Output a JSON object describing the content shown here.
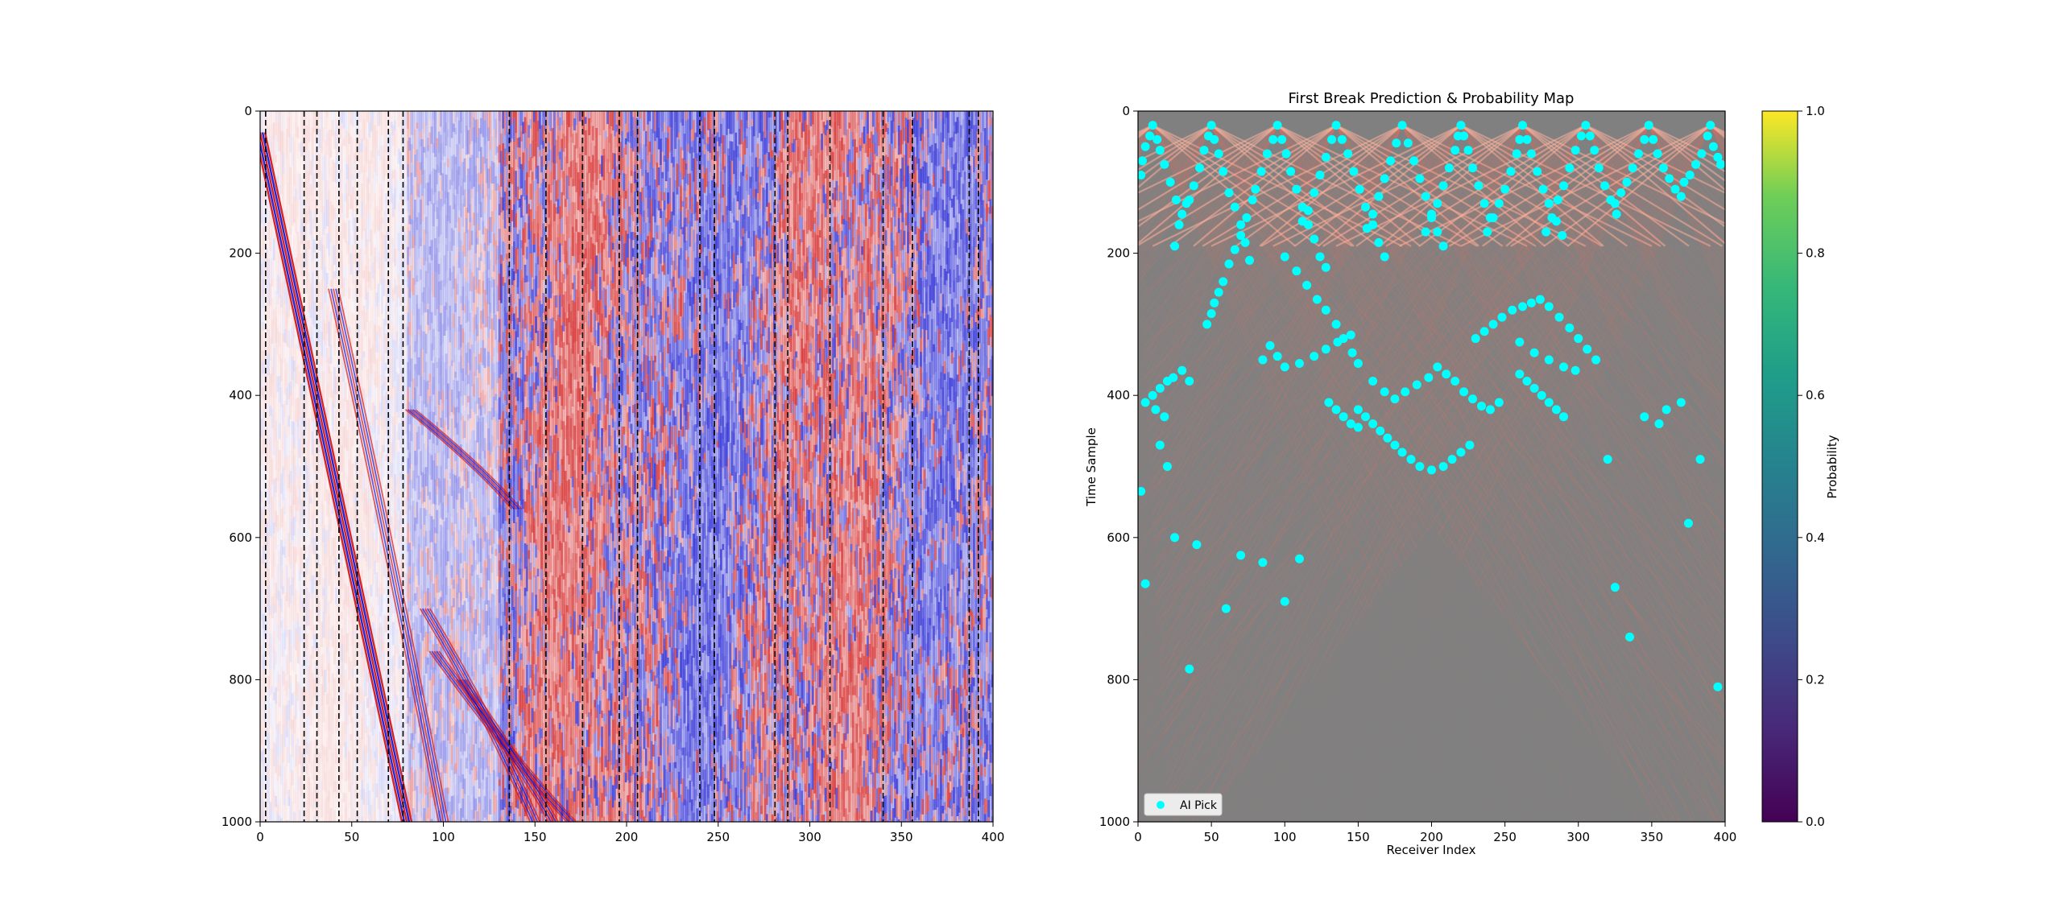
{
  "chart_data": [
    {
      "type": "heatmap",
      "title": "",
      "xlabel": "",
      "ylabel": "",
      "xlim": [
        0,
        400
      ],
      "ylim": [
        1000,
        0
      ],
      "xticks": [
        0,
        50,
        100,
        150,
        200,
        250,
        300,
        350,
        400
      ],
      "yticks": [
        0,
        200,
        400,
        600,
        800,
        1000
      ],
      "colormap": "seismic (blue-white-red)",
      "colors": {
        "positive": "#d01010",
        "negative": "#1010d0",
        "zero": "#ffffff"
      },
      "first_arrival_line": [
        [
          0,
          30
        ],
        [
          80,
          1000
        ]
      ],
      "dashed_trace_positions": [
        3,
        24,
        31,
        43,
        53,
        70,
        78,
        136,
        156,
        176,
        196,
        206,
        240,
        248,
        281,
        288,
        311,
        340,
        356,
        387,
        392
      ]
    },
    {
      "type": "heatmap",
      "title": "First Break Prediction & Probability Map",
      "xlabel": "Receiver Index",
      "ylabel": "Time Sample",
      "xlim": [
        0,
        400
      ],
      "ylim": [
        1000,
        0
      ],
      "xticks": [
        0,
        50,
        100,
        150,
        200,
        250,
        300,
        350,
        400
      ],
      "yticks": [
        0,
        200,
        400,
        600,
        800,
        1000
      ],
      "background_color": "#808080",
      "overlay_color": "#ff6e5a",
      "source_apexes": [
        {
          "x": 10,
          "t": 20
        },
        {
          "x": 50,
          "t": 20
        },
        {
          "x": 95,
          "t": 20
        },
        {
          "x": 135,
          "t": 20
        },
        {
          "x": 180,
          "t": 20
        },
        {
          "x": 220,
          "t": 20
        },
        {
          "x": 262,
          "t": 20
        },
        {
          "x": 305,
          "t": 20
        },
        {
          "x": 348,
          "t": 20
        },
        {
          "x": 390,
          "t": 20
        }
      ],
      "series": [
        {
          "name": "AI Pick",
          "color": "#00ffff",
          "points": [
            [
              10,
              20
            ],
            [
              8,
              35
            ],
            [
              5,
              50
            ],
            [
              3,
              70
            ],
            [
              2,
              90
            ],
            [
              13,
              40
            ],
            [
              15,
              55
            ],
            [
              18,
              75
            ],
            [
              22,
              100
            ],
            [
              26,
              125
            ],
            [
              30,
              145
            ],
            [
              33,
              130
            ],
            [
              28,
              160
            ],
            [
              25,
              190
            ],
            [
              50,
              20
            ],
            [
              48,
              35
            ],
            [
              45,
              55
            ],
            [
              42,
              80
            ],
            [
              38,
              105
            ],
            [
              35,
              125
            ],
            [
              52,
              40
            ],
            [
              55,
              60
            ],
            [
              58,
              85
            ],
            [
              62,
              115
            ],
            [
              66,
              135
            ],
            [
              70,
              160
            ],
            [
              73,
              185
            ],
            [
              76,
              210
            ],
            [
              95,
              20
            ],
            [
              92,
              40
            ],
            [
              88,
              60
            ],
            [
              84,
              85
            ],
            [
              80,
              110
            ],
            [
              78,
              125
            ],
            [
              74,
              150
            ],
            [
              70,
              175
            ],
            [
              66,
              195
            ],
            [
              62,
              215
            ],
            [
              58,
              240
            ],
            [
              55,
              255
            ],
            [
              52,
              270
            ],
            [
              50,
              285
            ],
            [
              47,
              300
            ],
            [
              98,
              40
            ],
            [
              101,
              60
            ],
            [
              104,
              85
            ],
            [
              108,
              110
            ],
            [
              112,
              135
            ],
            [
              116,
              160
            ],
            [
              120,
              180
            ],
            [
              124,
              205
            ],
            [
              128,
              220
            ],
            [
              135,
              20
            ],
            [
              132,
              40
            ],
            [
              128,
              65
            ],
            [
              124,
              90
            ],
            [
              120,
              115
            ],
            [
              116,
              140
            ],
            [
              112,
              155
            ],
            [
              139,
              40
            ],
            [
              143,
              60
            ],
            [
              147,
              85
            ],
            [
              151,
              110
            ],
            [
              155,
              135
            ],
            [
              160,
              160
            ],
            [
              164,
              185
            ],
            [
              168,
              205
            ],
            [
              180,
              20
            ],
            [
              176,
              45
            ],
            [
              172,
              70
            ],
            [
              168,
              95
            ],
            [
              164,
              120
            ],
            [
              160,
              145
            ],
            [
              156,
              165
            ],
            [
              184,
              45
            ],
            [
              188,
              70
            ],
            [
              192,
              95
            ],
            [
              196,
              120
            ],
            [
              200,
              145
            ],
            [
              204,
              170
            ],
            [
              208,
              190
            ],
            [
              220,
              20
            ],
            [
              218,
              35
            ],
            [
              216,
              55
            ],
            [
              212,
              80
            ],
            [
              208,
              105
            ],
            [
              204,
              130
            ],
            [
              200,
              150
            ],
            [
              196,
              170
            ],
            [
              222,
              35
            ],
            [
              225,
              55
            ],
            [
              228,
              80
            ],
            [
              232,
              105
            ],
            [
              236,
              130
            ],
            [
              240,
              150
            ],
            [
              262,
              20
            ],
            [
              260,
              40
            ],
            [
              258,
              60
            ],
            [
              254,
              85
            ],
            [
              250,
              110
            ],
            [
              246,
              130
            ],
            [
              242,
              150
            ],
            [
              238,
              170
            ],
            [
              265,
              40
            ],
            [
              268,
              60
            ],
            [
              272,
              85
            ],
            [
              276,
              110
            ],
            [
              280,
              130
            ],
            [
              285,
              155
            ],
            [
              289,
              175
            ],
            [
              305,
              20
            ],
            [
              302,
              35
            ],
            [
              298,
              55
            ],
            [
              294,
              80
            ],
            [
              290,
              105
            ],
            [
              286,
              125
            ],
            [
              282,
              150
            ],
            [
              278,
              170
            ],
            [
              308,
              35
            ],
            [
              311,
              55
            ],
            [
              314,
              80
            ],
            [
              318,
              105
            ],
            [
              322,
              125
            ],
            [
              326,
              145
            ],
            [
              348,
              20
            ],
            [
              345,
              40
            ],
            [
              341,
              60
            ],
            [
              337,
              80
            ],
            [
              333,
              100
            ],
            [
              329,
              115
            ],
            [
              325,
              130
            ],
            [
              351,
              40
            ],
            [
              354,
              60
            ],
            [
              358,
              80
            ],
            [
              362,
              95
            ],
            [
              366,
              110
            ],
            [
              370,
              120
            ],
            [
              390,
              20
            ],
            [
              388,
              35
            ],
            [
              392,
              50
            ],
            [
              395,
              65
            ],
            [
              397,
              75
            ],
            [
              384,
              60
            ],
            [
              380,
              75
            ],
            [
              376,
              90
            ],
            [
              372,
              100
            ],
            [
              100,
              205
            ],
            [
              108,
              225
            ],
            [
              115,
              245
            ],
            [
              122,
              265
            ],
            [
              128,
              280
            ],
            [
              135,
              300
            ],
            [
              140,
              320
            ],
            [
              146,
              340
            ],
            [
              150,
              355
            ],
            [
              90,
              330
            ],
            [
              95,
              345
            ],
            [
              85,
              350
            ],
            [
              160,
              380
            ],
            [
              168,
              395
            ],
            [
              175,
              405
            ],
            [
              182,
              395
            ],
            [
              190,
              385
            ],
            [
              198,
              375
            ],
            [
              204,
              360
            ],
            [
              210,
              370
            ],
            [
              216,
              380
            ],
            [
              222,
              395
            ],
            [
              228,
              405
            ],
            [
              234,
              415
            ],
            [
              240,
              420
            ],
            [
              246,
              410
            ],
            [
              150,
              420
            ],
            [
              155,
              430
            ],
            [
              160,
              440
            ],
            [
              165,
              450
            ],
            [
              170,
              460
            ],
            [
              175,
              470
            ],
            [
              180,
              480
            ],
            [
              186,
              490
            ],
            [
              192,
              500
            ],
            [
              200,
              505
            ],
            [
              208,
              500
            ],
            [
              214,
              490
            ],
            [
              220,
              480
            ],
            [
              226,
              470
            ],
            [
              130,
              410
            ],
            [
              135,
              420
            ],
            [
              140,
              430
            ],
            [
              145,
              440
            ],
            [
              150,
              445
            ],
            [
              260,
              370
            ],
            [
              265,
              380
            ],
            [
              270,
              390
            ],
            [
              275,
              400
            ],
            [
              280,
              410
            ],
            [
              285,
              420
            ],
            [
              290,
              430
            ],
            [
              230,
              320
            ],
            [
              236,
              310
            ],
            [
              242,
              300
            ],
            [
              248,
              290
            ],
            [
              255,
              280
            ],
            [
              262,
              275
            ],
            [
              268,
              270
            ],
            [
              274,
              265
            ],
            [
              280,
              275
            ],
            [
              287,
              290
            ],
            [
              294,
              305
            ],
            [
              300,
              320
            ],
            [
              306,
              335
            ],
            [
              312,
              350
            ],
            [
              20,
              380
            ],
            [
              15,
              390
            ],
            [
              10,
              400
            ],
            [
              5,
              410
            ],
            [
              12,
              420
            ],
            [
              18,
              430
            ],
            [
              24,
              375
            ],
            [
              30,
              365
            ],
            [
              35,
              380
            ],
            [
              2,
              535
            ],
            [
              5,
              665
            ],
            [
              25,
              600
            ],
            [
              40,
              610
            ],
            [
              70,
              625
            ],
            [
              85,
              635
            ],
            [
              100,
              690
            ],
            [
              110,
              630
            ],
            [
              60,
              700
            ],
            [
              35,
              785
            ],
            [
              20,
              500
            ],
            [
              15,
              470
            ],
            [
              320,
              490
            ],
            [
              325,
              670
            ],
            [
              335,
              740
            ],
            [
              375,
              580
            ],
            [
              395,
              810
            ],
            [
              383,
              490
            ],
            [
              355,
              440
            ],
            [
              345,
              430
            ],
            [
              360,
              420
            ],
            [
              370,
              410
            ],
            [
              100,
              360
            ],
            [
              110,
              355
            ],
            [
              120,
              345
            ],
            [
              128,
              335
            ],
            [
              136,
              325
            ],
            [
              145,
              315
            ],
            [
              260,
              325
            ],
            [
              270,
              340
            ],
            [
              280,
              350
            ],
            [
              290,
              360
            ],
            [
              298,
              365
            ]
          ]
        }
      ],
      "legend": {
        "position": "lower-left",
        "entries": [
          "AI Pick"
        ]
      },
      "colorbar": {
        "label": "Probability",
        "range": [
          0,
          1
        ],
        "ticks": [
          "0.0",
          "0.2",
          "0.4",
          "0.6",
          "0.8",
          "1.0"
        ],
        "colormap": "viridis"
      }
    }
  ]
}
